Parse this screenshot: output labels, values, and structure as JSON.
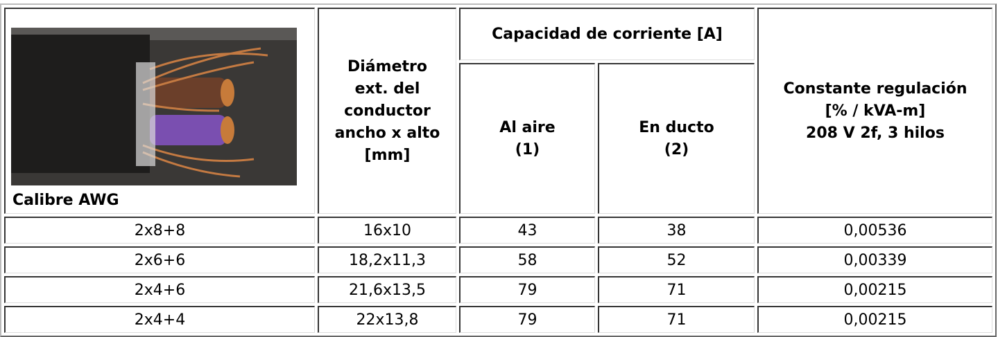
{
  "header": {
    "calibre": "Calibre AWG",
    "diametro": [
      "Diámetro",
      "ext. del",
      "conductor",
      "ancho x alto",
      "[mm]"
    ],
    "capacidad": "Capacidad de corriente [A]",
    "al_aire": [
      "Al aire",
      "(1)"
    ],
    "en_ducto": [
      "En ducto",
      "(2)"
    ],
    "constante": [
      "Constante regulación",
      "[% / kVA-m]",
      "208 V 2f, 3 hilos"
    ]
  },
  "table": {
    "rows": [
      [
        "2x8+8",
        "16x10",
        "43",
        "38",
        "0,00536"
      ],
      [
        "2x6+6",
        "18,2x11,3",
        "58",
        "52",
        "0,00339"
      ],
      [
        "2x4+6",
        "21,6x13,5",
        "79",
        "71",
        "0,00215"
      ],
      [
        "2x4+4",
        "22x13,8",
        "79",
        "71",
        "0,00215"
      ]
    ]
  }
}
